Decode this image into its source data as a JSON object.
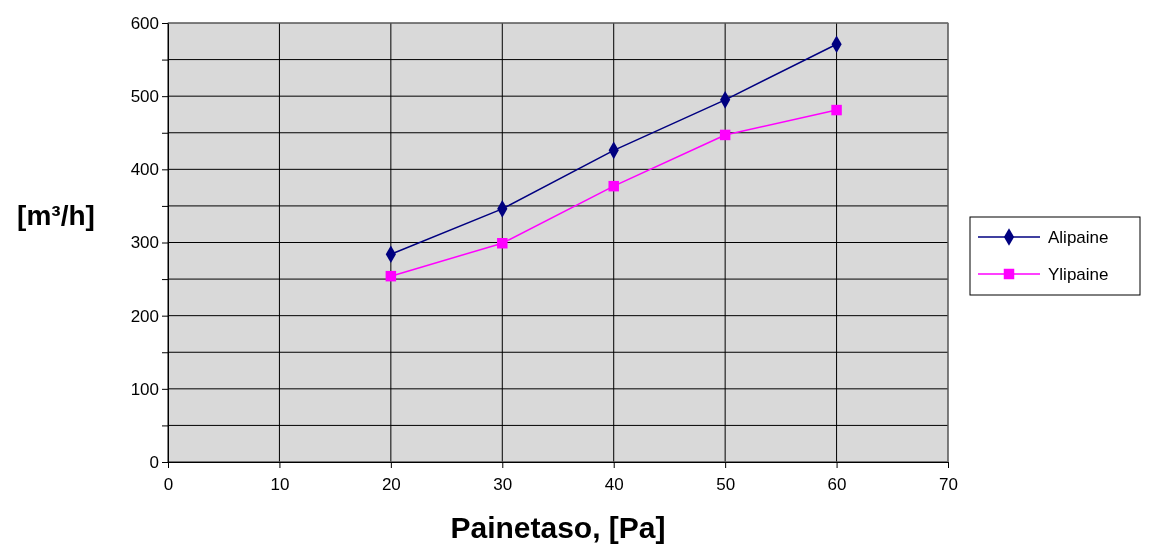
{
  "chart_data": {
    "type": "line",
    "xlabel": "Painetaso, [Pa]",
    "ylabel": "[m³/h]",
    "xlim": [
      0,
      70
    ],
    "xticks": [
      0,
      10,
      20,
      30,
      40,
      50,
      60,
      70
    ],
    "ylim": [
      0,
      600
    ],
    "yticks": [
      0,
      {
        "value": 50,
        "label": null
      },
      100,
      {
        "value": 150,
        "label": null
      },
      200,
      {
        "value": 250,
        "label": null
      },
      300,
      {
        "value": 350,
        "label": null
      },
      400,
      {
        "value": 450,
        "label": null
      },
      500,
      {
        "value": 550,
        "label": null
      },
      600
    ],
    "grid": true,
    "legend": "right",
    "series": [
      {
        "name": "Alipaine",
        "color": "#000080",
        "marker": "diamond",
        "x": [
          20,
          30,
          40,
          50,
          60
        ],
        "values": [
          284,
          346,
          426,
          495,
          571
        ]
      },
      {
        "name": "Ylipaine",
        "color": "#ff00ff",
        "marker": "square",
        "x": [
          20,
          30,
          40,
          50,
          60
        ],
        "values": [
          254,
          299,
          377,
          447,
          481
        ]
      }
    ]
  }
}
